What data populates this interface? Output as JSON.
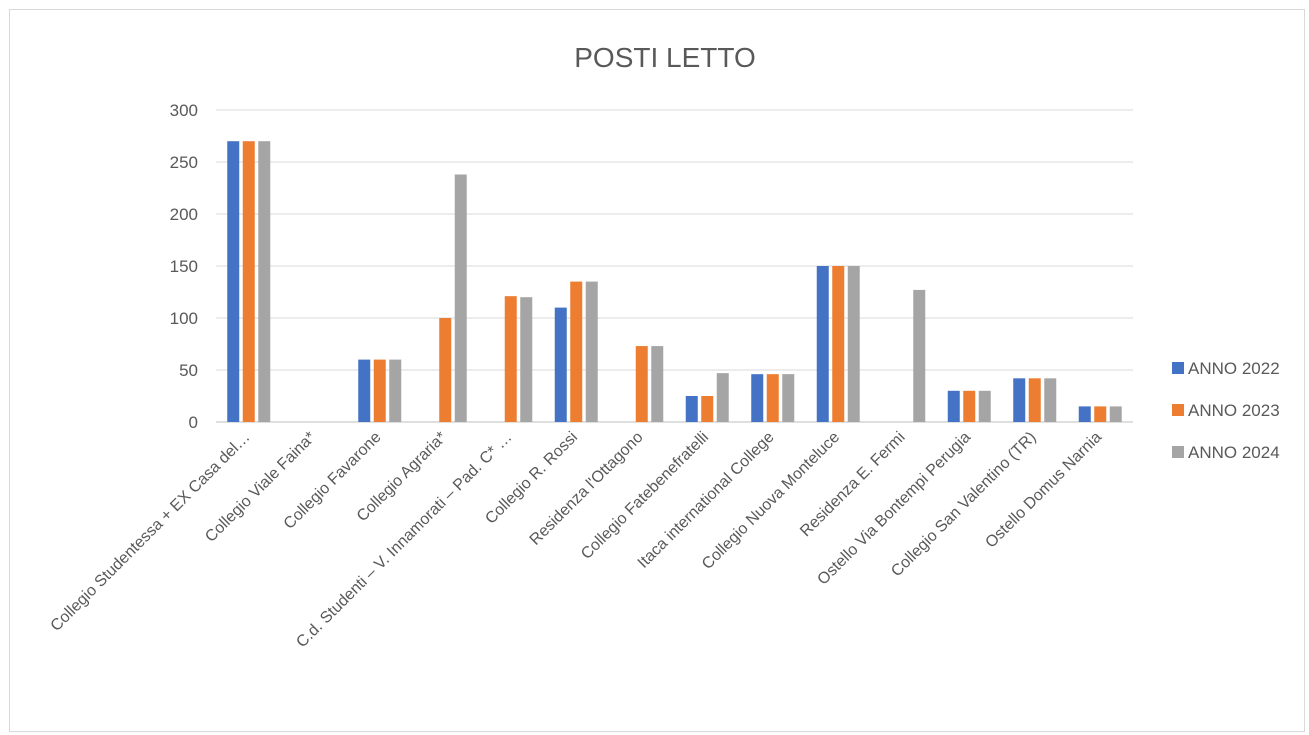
{
  "chart_data": {
    "type": "bar",
    "title": "POSTI LETTO",
    "xlabel": "",
    "ylabel": "",
    "ylim": [
      0,
      300
    ],
    "yticks": [
      0,
      50,
      100,
      150,
      200,
      250,
      300
    ],
    "grid": true,
    "legend_position": "right",
    "categories": [
      "Collegio Studentessa + EX Casa del…",
      "Collegio Viale Faina*",
      "Collegio Favarone",
      "Collegio Agraria*",
      "C.d. Studenti – V. Innamorati – Pad. C* …",
      "Collegio R. Rossi",
      "Residenza l'Ottagono",
      "Collegio Fatebenefratelli",
      "Itaca international College",
      "Collegio Nuova Monteluce",
      "Residenza E. Fermi",
      "Ostello Via Bontempi Perugia",
      "Collegio San Valentino (TR)",
      "Ostello Domus Narnia"
    ],
    "series": [
      {
        "name": "ANNO 2022",
        "color": "#4472c4",
        "values": [
          270,
          0,
          60,
          0,
          0,
          110,
          0,
          25,
          46,
          150,
          0,
          30,
          42,
          15
        ]
      },
      {
        "name": "ANNO 2023",
        "color": "#ed7d31",
        "values": [
          270,
          0,
          60,
          100,
          121,
          135,
          73,
          25,
          46,
          150,
          0,
          30,
          42,
          15
        ]
      },
      {
        "name": "ANNO 2024",
        "color": "#a5a5a5",
        "values": [
          270,
          0,
          60,
          238,
          120,
          135,
          73,
          47,
          46,
          150,
          127,
          30,
          42,
          15
        ]
      }
    ]
  }
}
